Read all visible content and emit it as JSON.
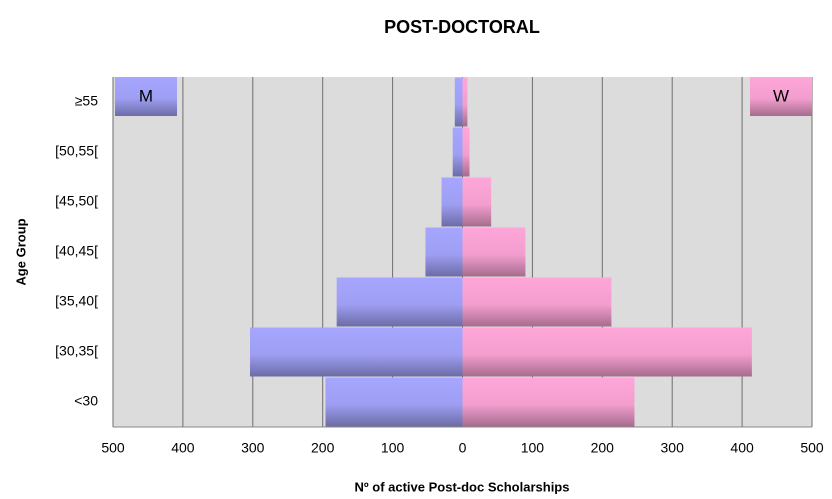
{
  "chart_data": {
    "type": "bar",
    "orientation": "horizontal",
    "title": "POST-DOCTORAL",
    "xlabel": "Nº of active Post-doc Scholarships",
    "ylabel": "Age Group",
    "categories": [
      "≥55",
      "[50,55[",
      "[45,50[",
      "[40,45[",
      "[35,40[",
      "[30,35[",
      "<30"
    ],
    "series": [
      {
        "name": "M",
        "color": "#a6a6ff",
        "values": [
          -11,
          -14,
          -30,
          -53,
          -180,
          -304,
          -196
        ]
      },
      {
        "name": "W",
        "color": "#ffa6d9",
        "values": [
          7,
          10,
          41,
          90,
          213,
          414,
          246
        ]
      }
    ],
    "xlim": [
      -500,
      500
    ],
    "xticks": [
      {
        "value": -500,
        "label": "500"
      },
      {
        "value": -400,
        "label": "400"
      },
      {
        "value": -300,
        "label": "300"
      },
      {
        "value": -200,
        "label": "200"
      },
      {
        "value": -100,
        "label": "100"
      },
      0,
      100,
      200,
      300,
      400,
      500
    ],
    "grid": true
  }
}
